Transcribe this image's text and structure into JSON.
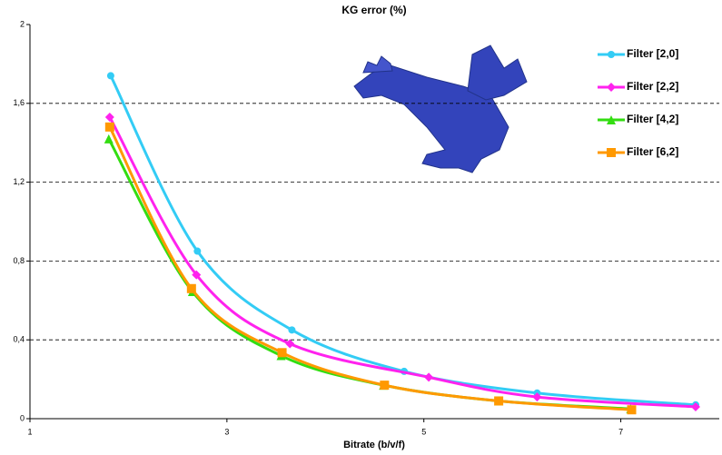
{
  "chart_data": {
    "type": "line",
    "title": "KG error (%)",
    "x_label": "Bitrate (b/v/f)",
    "xlim": [
      1,
      8
    ],
    "xticks": [
      1,
      3,
      5,
      7
    ],
    "ylim": [
      0,
      2
    ],
    "yticks": [
      0,
      {
        "value": 0.4,
        "label": "0,4"
      },
      {
        "value": 0.8,
        "label": "0,8"
      },
      {
        "value": 1.2,
        "label": "1,2"
      },
      {
        "value": 1.6,
        "label": "1,6"
      },
      2
    ],
    "grid": true,
    "legend": "upper right",
    "series": [
      {
        "name": "Filter [2,0]",
        "color": "#33ccf5",
        "marker": "circle",
        "x": [
          1.82,
          2.7,
          3.66,
          4.8,
          6.15,
          7.76
        ],
        "values": [
          1.74,
          0.85,
          0.45,
          0.24,
          0.13,
          0.07
        ]
      },
      {
        "name": "Filter [2,2]",
        "color": "#ff22ee",
        "marker": "diamond",
        "x": [
          1.81,
          2.69,
          3.64,
          5.05,
          6.15,
          7.76
        ],
        "values": [
          1.53,
          0.73,
          0.38,
          0.21,
          0.11,
          0.06
        ]
      },
      {
        "name": "Filter [4,2]",
        "color": "#33dd11",
        "marker": "triangle",
        "x": [
          1.8,
          2.65,
          3.55,
          4.59,
          5.76,
          7.1
        ],
        "values": [
          1.42,
          0.645,
          0.32,
          0.17,
          0.09,
          0.05
        ]
      },
      {
        "name": "Filter [6,2]",
        "color": "#ff9900",
        "marker": "square",
        "x": [
          1.81,
          2.64,
          3.56,
          4.6,
          5.76,
          7.11
        ],
        "values": [
          1.48,
          0.66,
          0.335,
          0.17,
          0.09,
          0.045
        ]
      }
    ]
  }
}
